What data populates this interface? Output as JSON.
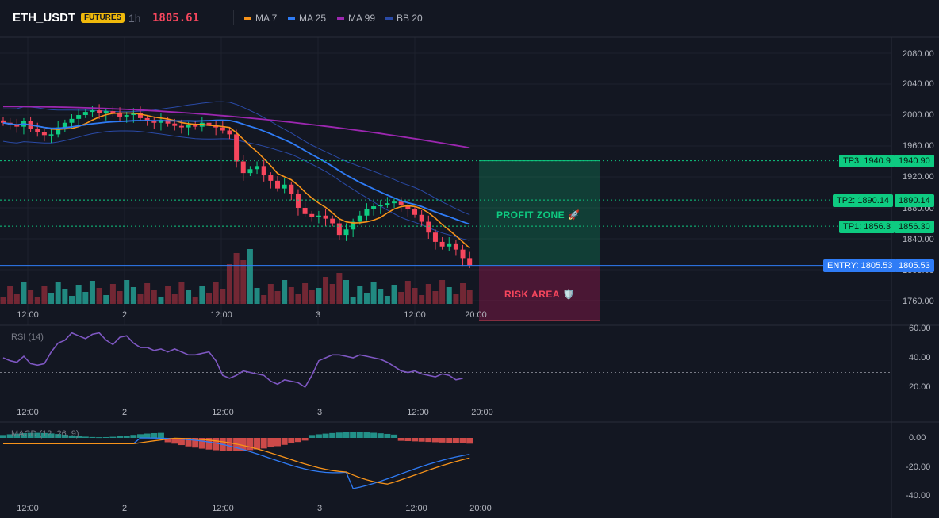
{
  "header": {
    "symbol": "ETH_USDT",
    "badge": "FUTURES",
    "timeframe": "1h",
    "last_price": "1805.61"
  },
  "legend": [
    {
      "label": "MA 7",
      "color": "#f7931a"
    },
    {
      "label": "MA 25",
      "color": "#2f7cf6"
    },
    {
      "label": "MA 99",
      "color": "#9c27b0"
    },
    {
      "label": "BB 20",
      "color": "#2a4aa6"
    }
  ],
  "x_axis_labels": [
    "12:00",
    "2",
    "12:00",
    "3",
    "12:00",
    "20:00"
  ],
  "price_axis_labels": [
    "2080.00",
    "2040.00",
    "2000.00",
    "1960.00",
    "1920.00",
    "1880.00",
    "1840.00",
    "1800.00",
    "1760.00"
  ],
  "levels": {
    "tp3": {
      "tag": "TP3: 1940.9",
      "axis": "1940.90",
      "value": 1940.9
    },
    "tp2": {
      "tag": "TP2: 1890.14",
      "axis": "1890.14",
      "value": 1890.14
    },
    "tp1": {
      "tag": "TP1: 1856.3",
      "axis": "1856.30",
      "value": 1856.3
    },
    "entry": {
      "tag": "ENTRY: 1805.53",
      "axis": "1805.53",
      "value": 1805.53
    }
  },
  "zones": {
    "profit": "PROFIT ZONE 🚀",
    "risk": "RISK AREA 🛡️"
  },
  "rsi": {
    "label": "RSI (14)",
    "axis_labels": [
      "60.00",
      "40.00",
      "20.00"
    ]
  },
  "macd": {
    "label": "MACD (12, 26, 9)",
    "axis_labels": [
      "0.00",
      "-20.00",
      "-40.00"
    ]
  },
  "colors": {
    "bg": "#131722",
    "up": "#26a69a",
    "up_bright": "#0ecb81",
    "down": "#f6465d",
    "grid": "#1e222d"
  }
}
